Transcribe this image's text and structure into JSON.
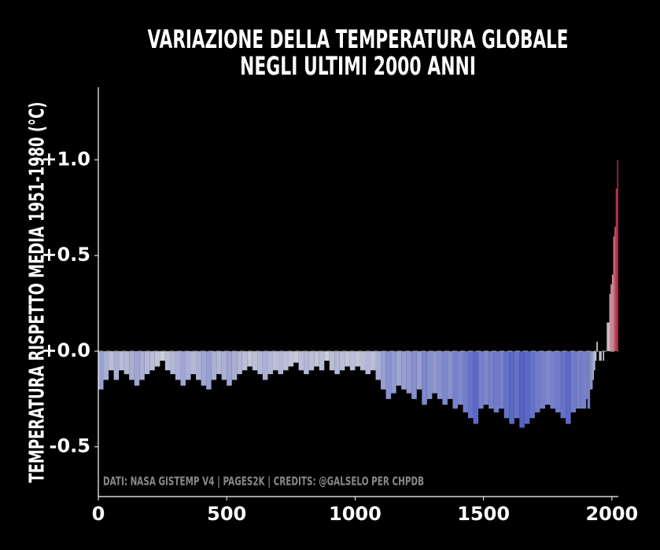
{
  "chart_data": {
    "type": "bar",
    "title": [
      "VARIAZIONE DELLA TEMPERATURA GLOBALE",
      "NEGLI ULTIMI 2000 ANNI"
    ],
    "y_label": "TEMPERATURA RISPETTO MEDIA 1951-1980 (°C)",
    "annotation": "DATI: NASA GISTEMP V4 | PAGES2K | CREDITS: @GALSELO PER CHPDB",
    "x": [
      0,
      20,
      40,
      60,
      80,
      100,
      120,
      140,
      160,
      180,
      200,
      220,
      240,
      260,
      280,
      300,
      320,
      340,
      360,
      380,
      400,
      420,
      440,
      460,
      480,
      500,
      520,
      540,
      560,
      580,
      600,
      620,
      640,
      660,
      680,
      700,
      720,
      740,
      760,
      780,
      800,
      820,
      840,
      860,
      880,
      900,
      920,
      940,
      960,
      980,
      1000,
      1020,
      1040,
      1060,
      1080,
      1100,
      1120,
      1140,
      1160,
      1180,
      1200,
      1220,
      1240,
      1260,
      1280,
      1300,
      1320,
      1340,
      1360,
      1380,
      1400,
      1420,
      1440,
      1460,
      1480,
      1500,
      1520,
      1540,
      1560,
      1580,
      1600,
      1620,
      1640,
      1660,
      1680,
      1700,
      1720,
      1740,
      1760,
      1780,
      1800,
      1820,
      1840,
      1860,
      1880,
      1900,
      1905,
      1910,
      1915,
      1920,
      1925,
      1930,
      1935,
      1940,
      1945,
      1950,
      1955,
      1960,
      1965,
      1970,
      1975,
      1980,
      1985,
      1990,
      1995,
      2000,
      2005,
      2010,
      2015,
      2020
    ],
    "values": [
      -0.2,
      -0.15,
      -0.1,
      -0.15,
      -0.1,
      -0.12,
      -0.15,
      -0.18,
      -0.15,
      -0.12,
      -0.1,
      -0.08,
      -0.05,
      -0.1,
      -0.12,
      -0.15,
      -0.18,
      -0.15,
      -0.12,
      -0.15,
      -0.18,
      -0.2,
      -0.15,
      -0.12,
      -0.15,
      -0.18,
      -0.15,
      -0.12,
      -0.1,
      -0.08,
      -0.1,
      -0.12,
      -0.15,
      -0.12,
      -0.1,
      -0.12,
      -0.1,
      -0.08,
      -0.06,
      -0.1,
      -0.12,
      -0.1,
      -0.08,
      -0.1,
      -0.05,
      -0.1,
      -0.12,
      -0.1,
      -0.08,
      -0.1,
      -0.08,
      -0.1,
      -0.12,
      -0.1,
      -0.15,
      -0.2,
      -0.25,
      -0.22,
      -0.18,
      -0.2,
      -0.22,
      -0.25,
      -0.2,
      -0.28,
      -0.25,
      -0.22,
      -0.25,
      -0.28,
      -0.25,
      -0.3,
      -0.28,
      -0.32,
      -0.35,
      -0.38,
      -0.3,
      -0.28,
      -0.3,
      -0.32,
      -0.3,
      -0.35,
      -0.38,
      -0.35,
      -0.4,
      -0.38,
      -0.35,
      -0.32,
      -0.3,
      -0.28,
      -0.3,
      -0.32,
      -0.35,
      -0.38,
      -0.32,
      -0.3,
      -0.3,
      -0.25,
      -0.3,
      -0.3,
      -0.2,
      -0.2,
      -0.15,
      -0.1,
      -0.05,
      0.05,
      0,
      -0.05,
      -0.05,
      0,
      -0.05,
      0,
      0,
      0.15,
      0.15,
      0.3,
      0.35,
      0.4,
      0.6,
      0.65,
      0.85,
      1.0
    ],
    "colors": {
      "negative": "#3b4cc0",
      "zero": "#dddddd",
      "positive": "#b40426"
    },
    "xlim": [
      0,
      2025
    ],
    "xticks": [
      0,
      500,
      1000,
      1500,
      2000
    ],
    "ylim": [
      -0.76,
      1.38
    ],
    "yticks": [
      {
        "value": 1.0,
        "label": "+1.0"
      },
      {
        "value": 0.5,
        "label": "+0.5"
      },
      {
        "value": 0,
        "label": "+0.0"
      },
      -0.5
    ],
    "reference_line": 0
  }
}
